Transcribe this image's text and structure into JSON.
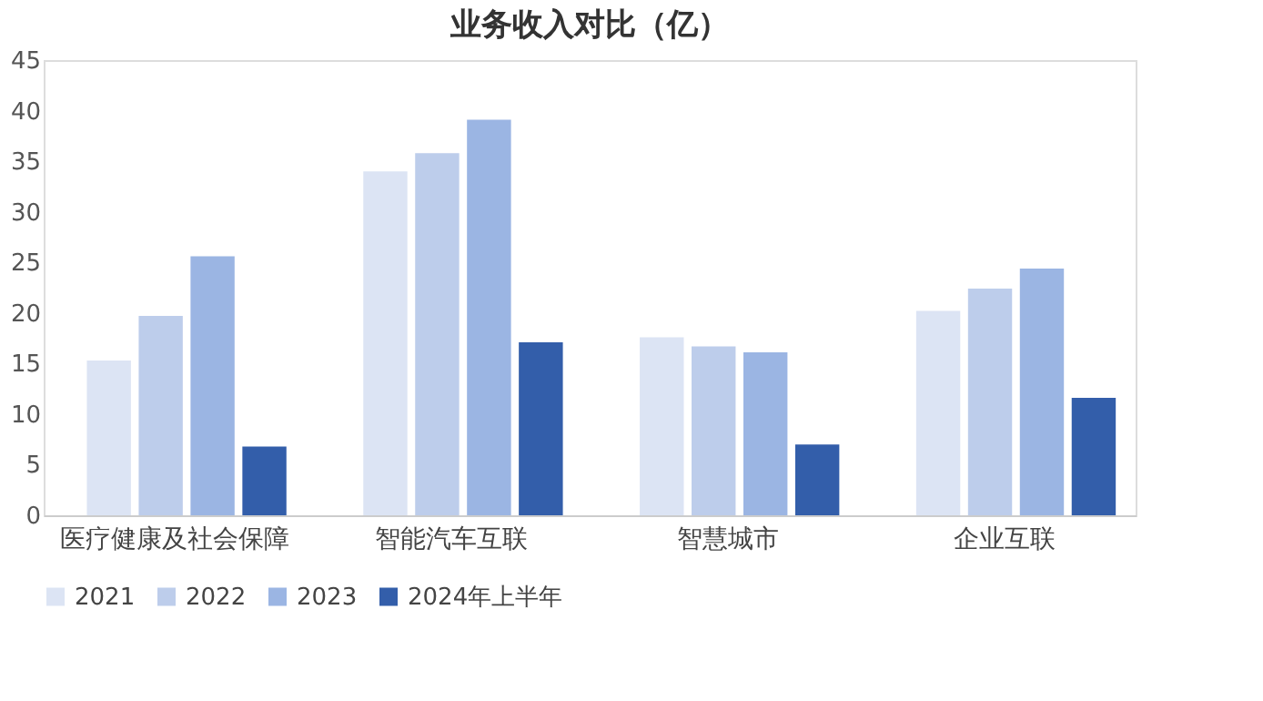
{
  "chart_data": {
    "type": "bar",
    "title": "业务收入对比（亿）",
    "categories": [
      "医疗健康及社会保障",
      "智能汽车互联",
      "智慧城市",
      "企业互联"
    ],
    "series": [
      {
        "name": "2021",
        "color": "#dce4f4",
        "values": [
          15.3,
          34.0,
          17.6,
          20.2
        ]
      },
      {
        "name": "2022",
        "color": "#bdcdeb",
        "values": [
          19.7,
          35.8,
          16.7,
          22.4
        ]
      },
      {
        "name": "2023",
        "color": "#9bb5e3",
        "values": [
          25.6,
          39.1,
          16.1,
          24.4
        ]
      },
      {
        "name": "2024年上半年",
        "color": "#335eaa",
        "values": [
          6.8,
          17.1,
          7.0,
          11.6
        ]
      }
    ],
    "ylim": [
      0,
      45
    ],
    "yticks": [
      0,
      5,
      10,
      15,
      20,
      25,
      30,
      35,
      40,
      45
    ],
    "grid": false,
    "legend": "bottom"
  }
}
